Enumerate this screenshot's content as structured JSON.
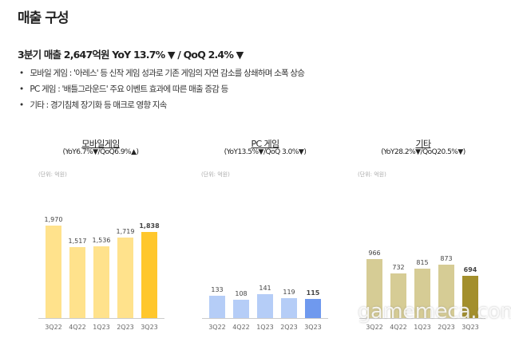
{
  "title": "매출 구성",
  "headline": "3분기 매출 2,647억원 YoY 13.7% ▼ / QoQ 2.4% ▼",
  "bullets": [
    "모바일 게임 : '아레스' 등 신작 게임 성과로 기존 게임의 자연 감소를 상쇄하며 소폭 상승",
    "PC 게임 : '배틀그라운드' 주요 이벤트 효과에 따른 매출 증감 등",
    "기타 : 경기침체 장기화 등 매크로 영향 지속"
  ],
  "watermark": "gamemeca.com",
  "chart_data": [
    {
      "type": "bar",
      "title": "모바일게임",
      "subtitle": "(YoY6.7%▼/QoQ6.9%▲)",
      "unit": "(단위: 억원)",
      "categories": [
        "3Q22",
        "4Q22",
        "1Q23",
        "2Q23",
        "3Q23"
      ],
      "values": [
        1970,
        1517,
        1536,
        1719,
        1838
      ],
      "labels": [
        "1,970",
        "1,517",
        "1,536",
        "1,719",
        "1,838"
      ],
      "color": "#FFE28C",
      "highlight_color": "#FFC72C"
    },
    {
      "type": "bar",
      "title": "PC 게임",
      "subtitle": "(YoY13.5%▼/QoQ 3.0%▼)",
      "unit": "(단위: 억원)",
      "categories": [
        "3Q22",
        "4Q22",
        "1Q23",
        "2Q23",
        "3Q23"
      ],
      "values": [
        133,
        108,
        141,
        119,
        115
      ],
      "labels": [
        "133",
        "108",
        "141",
        "119",
        "115"
      ],
      "color": "#B5CDF7",
      "highlight_color": "#6F99EE"
    },
    {
      "type": "bar",
      "title": "기타",
      "subtitle": "(YoY28.2%▼/QoQ20.5%▼)",
      "unit": "(단위: 억원)",
      "categories": [
        "3Q22",
        "4Q22",
        "1Q23",
        "2Q23",
        "3Q23"
      ],
      "values": [
        966,
        732,
        815,
        873,
        694
      ],
      "labels": [
        "966",
        "732",
        "815",
        "873",
        "694"
      ],
      "color": "#D6CC95",
      "highlight_color": "#A38F2C"
    }
  ]
}
